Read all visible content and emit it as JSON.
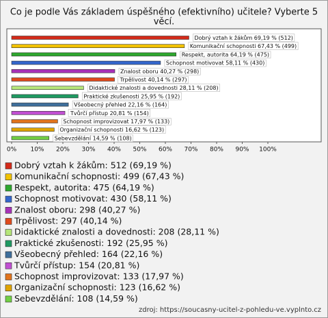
{
  "chart_data": {
    "type": "bar",
    "orientation": "horizontal",
    "title": [
      "Co je podle Vás základem úspěšného (efektivního) učitele? Vyberte 5",
      "věcí."
    ],
    "categories": [
      "Dobrý vztah k žákům",
      "Komunikační schopnosti",
      "Respekt, autorita",
      "Schopnost motivovat",
      "Znalost oboru",
      "Trpělivost",
      "Didaktické znalosti a dovednosti",
      "Praktické zkušenosti",
      "Všeobecný přehled",
      "Tvůrčí přístup",
      "Schopnost improvizovat",
      "Organizační schopnosti",
      "Sebevzdělání"
    ],
    "values": [
      69.19,
      67.43,
      64.19,
      58.11,
      40.27,
      40.14,
      28.11,
      25.95,
      22.16,
      20.81,
      17.97,
      16.62,
      14.59
    ],
    "value_labels": [
      "Dobrý vztah k žákům 69,19 % (512)",
      "Komunikační schopnosti 67,43 % (499)",
      "Respekt, autorita 64,19 % (475)",
      "Schopnost motivovat 58,11 % (430)",
      "Znalost oboru 40,27 % (298)",
      "Trpělivost 40,14 % (297)",
      "Didaktické znalosti a dovednosti 28,11 % (208)",
      "Praktické zkušenosti 25,95 % (192)",
      "Všeobecný přehled 22,16 % (164)",
      "Tvůrčí přístup 20,81 % (154)",
      "Schopnost improvizovat 17,97 % (133)",
      "Organizační schopnosti 16,62 % (123)",
      "Sebevzdělání 14,59 % (108)"
    ],
    "legend_labels": [
      "Dobrý vztah k žákům: 512 (69,19 %)",
      "Komunikační schopnosti: 499 (67,43 %)",
      "Respekt, autorita: 475 (64,19 %)",
      "Schopnost motivovat: 430 (58,11 %)",
      "Znalost oboru: 298 (40,27 %)",
      "Trpělivost: 297 (40,14 %)",
      "Didaktické znalosti a dovednosti: 208 (28,11 %)",
      "Praktické zkušenosti: 192 (25,95 %)",
      "Všeobecný přehled: 164 (22,16 %)",
      "Tvůrčí přístup: 154 (20,81 %)",
      "Schopnost improvizovat: 133 (17,97 %)",
      "Organizační schopnosti: 123 (16,62 %)",
      "Sebevzdělání: 108 (14,59 %)"
    ],
    "colors": [
      "#d42b1a",
      "#f2c200",
      "#2ea82e",
      "#3366cc",
      "#a832b8",
      "#e04a1c",
      "#b6e67a",
      "#1f9a62",
      "#3f6f9c",
      "#c150d2",
      "#e2741c",
      "#e0a400",
      "#72d044"
    ],
    "xlim": [
      0,
      120
    ],
    "xticks": [
      {
        "value": 0,
        "label": "0%"
      },
      {
        "value": 10,
        "label": "10%"
      },
      {
        "value": 20,
        "label": "20%"
      },
      {
        "value": 30,
        "label": "30%"
      },
      {
        "value": 40,
        "label": "40%"
      },
      {
        "value": 50,
        "label": "50%"
      },
      {
        "value": 60,
        "label": "60%"
      },
      {
        "value": 70,
        "label": "70%"
      },
      {
        "value": 80,
        "label": "80%"
      },
      {
        "value": 90,
        "label": "90%"
      },
      {
        "value": 100,
        "label": "100%"
      }
    ],
    "source": "zdroj: https://soucasny-ucitel-z-pohledu-ve.vyplnto.cz"
  }
}
